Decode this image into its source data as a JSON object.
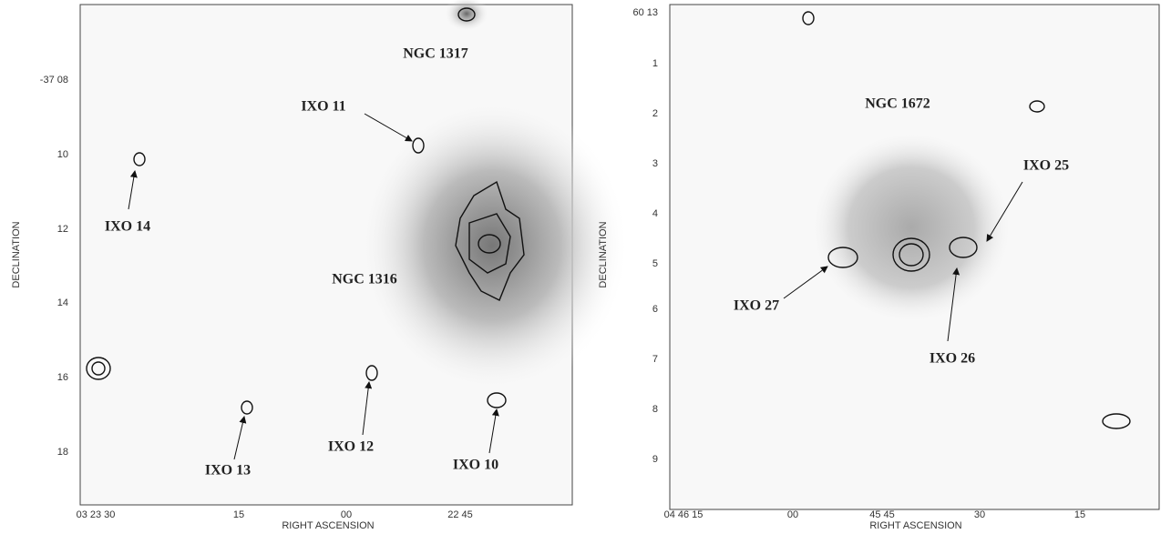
{
  "panels": [
    {
      "y_axis_label": "DECLINATION",
      "x_axis_label": "RIGHT ASCENSION",
      "y_ticks": [
        "-37 08",
        "10",
        "12",
        "14",
        "16",
        "18"
      ],
      "x_ticks": [
        "03 23 30",
        "15",
        "00",
        "22 45"
      ],
      "annotations": [
        "NGC 1317",
        "IXO 11",
        "IXO 14",
        "NGC 1316",
        "IXO 13",
        "IXO 12",
        "IXO 10"
      ]
    },
    {
      "y_axis_label": "DECLINATION",
      "x_axis_label": "RIGHT ASCENSION",
      "y_ticks": [
        "60 13",
        "1",
        "2",
        "3",
        "4",
        "5",
        "6",
        "7",
        "8",
        "9"
      ],
      "x_ticks": [
        "04 46 15",
        "00",
        "45 45",
        "30",
        "15"
      ],
      "annotations": [
        "NGC 1672",
        "IXO 25",
        "IXO 27",
        "IXO 26"
      ]
    }
  ]
}
